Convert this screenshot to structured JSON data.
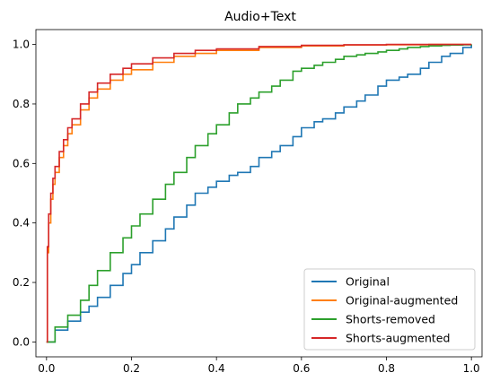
{
  "chart_data": {
    "type": "line",
    "title": "Audio+Text",
    "xlabel": "",
    "ylabel": "",
    "xlim": [
      -0.025,
      1.025
    ],
    "ylim": [
      -0.05,
      1.05
    ],
    "xticks": [
      0.0,
      0.2,
      0.4,
      0.6,
      0.8,
      1.0
    ],
    "xtick_labels": [
      "0.0",
      "0.2",
      "0.4",
      "0.6",
      "0.8",
      "1.0"
    ],
    "yticks": [
      0.0,
      0.2,
      0.4,
      0.6,
      0.8,
      1.0
    ],
    "ytick_labels": [
      "0.0",
      "0.2",
      "0.4",
      "0.6",
      "0.8",
      "1.0"
    ],
    "grid": false,
    "legend_position": "lower-right",
    "series": [
      {
        "name": "Original",
        "color": "#1f77b4",
        "x": [
          0.0,
          0.02,
          0.05,
          0.08,
          0.1,
          0.12,
          0.15,
          0.18,
          0.2,
          0.22,
          0.25,
          0.28,
          0.3,
          0.33,
          0.35,
          0.38,
          0.4,
          0.43,
          0.45,
          0.48,
          0.5,
          0.53,
          0.55,
          0.58,
          0.6,
          0.63,
          0.65,
          0.68,
          0.7,
          0.73,
          0.75,
          0.78,
          0.8,
          0.83,
          0.85,
          0.88,
          0.9,
          0.93,
          0.95,
          0.98,
          1.0
        ],
        "y": [
          0.0,
          0.04,
          0.07,
          0.1,
          0.12,
          0.15,
          0.19,
          0.23,
          0.26,
          0.3,
          0.34,
          0.38,
          0.42,
          0.46,
          0.5,
          0.52,
          0.54,
          0.56,
          0.57,
          0.59,
          0.62,
          0.64,
          0.66,
          0.69,
          0.72,
          0.74,
          0.75,
          0.77,
          0.79,
          0.81,
          0.83,
          0.86,
          0.88,
          0.89,
          0.9,
          0.92,
          0.94,
          0.96,
          0.97,
          0.99,
          1.0
        ]
      },
      {
        "name": "Original-augmented",
        "color": "#ff7f0e",
        "x": [
          0.0,
          0.002,
          0.005,
          0.01,
          0.015,
          0.02,
          0.03,
          0.04,
          0.05,
          0.06,
          0.08,
          0.1,
          0.12,
          0.15,
          0.18,
          0.2,
          0.25,
          0.3,
          0.35,
          0.4,
          0.5,
          0.6,
          0.7,
          0.8,
          0.9,
          1.0
        ],
        "y": [
          0.0,
          0.3,
          0.4,
          0.48,
          0.53,
          0.57,
          0.62,
          0.66,
          0.7,
          0.73,
          0.78,
          0.82,
          0.85,
          0.88,
          0.9,
          0.915,
          0.94,
          0.96,
          0.97,
          0.98,
          0.99,
          0.995,
          0.998,
          0.999,
          1.0,
          1.0
        ]
      },
      {
        "name": "Shorts-removed",
        "color": "#2ca02c",
        "x": [
          0.0,
          0.02,
          0.05,
          0.08,
          0.1,
          0.12,
          0.15,
          0.18,
          0.2,
          0.22,
          0.25,
          0.28,
          0.3,
          0.33,
          0.35,
          0.38,
          0.4,
          0.43,
          0.45,
          0.48,
          0.5,
          0.53,
          0.55,
          0.58,
          0.6,
          0.63,
          0.65,
          0.68,
          0.7,
          0.73,
          0.75,
          0.78,
          0.8,
          0.83,
          0.85,
          0.88,
          0.9,
          0.93,
          0.95,
          0.98,
          1.0
        ],
        "y": [
          0.0,
          0.05,
          0.09,
          0.14,
          0.19,
          0.24,
          0.3,
          0.35,
          0.39,
          0.43,
          0.48,
          0.53,
          0.57,
          0.62,
          0.66,
          0.7,
          0.73,
          0.77,
          0.8,
          0.82,
          0.84,
          0.86,
          0.88,
          0.91,
          0.92,
          0.93,
          0.94,
          0.95,
          0.96,
          0.965,
          0.97,
          0.975,
          0.98,
          0.985,
          0.99,
          0.993,
          0.995,
          0.997,
          0.998,
          0.999,
          1.0
        ]
      },
      {
        "name": "Shorts-augmented",
        "color": "#d62728",
        "x": [
          0.0,
          0.002,
          0.005,
          0.01,
          0.015,
          0.02,
          0.03,
          0.04,
          0.05,
          0.06,
          0.08,
          0.1,
          0.12,
          0.15,
          0.18,
          0.2,
          0.25,
          0.3,
          0.35,
          0.4,
          0.5,
          0.6,
          0.7,
          0.8,
          0.9,
          1.0
        ],
        "y": [
          0.0,
          0.32,
          0.43,
          0.5,
          0.55,
          0.59,
          0.64,
          0.68,
          0.72,
          0.75,
          0.8,
          0.84,
          0.87,
          0.9,
          0.92,
          0.935,
          0.955,
          0.97,
          0.98,
          0.985,
          0.993,
          0.997,
          0.999,
          1.0,
          1.0,
          1.0
        ]
      }
    ]
  }
}
